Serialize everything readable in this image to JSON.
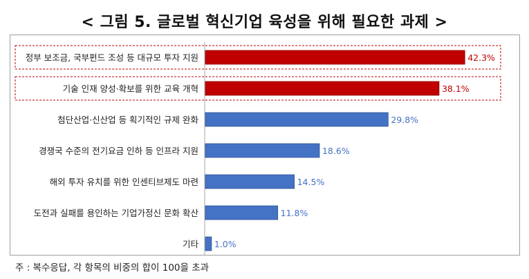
{
  "title": "< 그림 5. 글로벌 혁신기업 육성을 위해 필요한 과제 >",
  "note": "주 : 복수응답, 각 항목의 비중의 합이 100을 초과",
  "colors": {
    "highlight": "#c00000",
    "normal": "#4472c4"
  },
  "chart_data": {
    "type": "bar",
    "orientation": "horizontal",
    "categories": [
      "정부 보조금, 국부펀드 조성 등 대규모 투자 지원",
      "기술 인재 양성·확보를 위한 교육 개혁",
      "첨단산업·신산업 등 획기적인 규제 완화",
      "경쟁국 수준의 전기요금 인하 등 인프라 지원",
      "해외 투자 유치를 위한 인센티브제도 마련",
      "도전과 실패를 용인하는 기업가정신 문화 확산",
      "기타"
    ],
    "values": [
      42.3,
      38.1,
      29.8,
      18.6,
      14.5,
      11.8,
      1.0
    ],
    "value_labels": [
      "42.3%",
      "38.1%",
      "29.8%",
      "18.6%",
      "14.5%",
      "11.8%",
      "1.0%"
    ],
    "highlighted": [
      true,
      true,
      false,
      false,
      false,
      false,
      false
    ],
    "xlim": [
      0,
      50
    ],
    "grid": false
  }
}
